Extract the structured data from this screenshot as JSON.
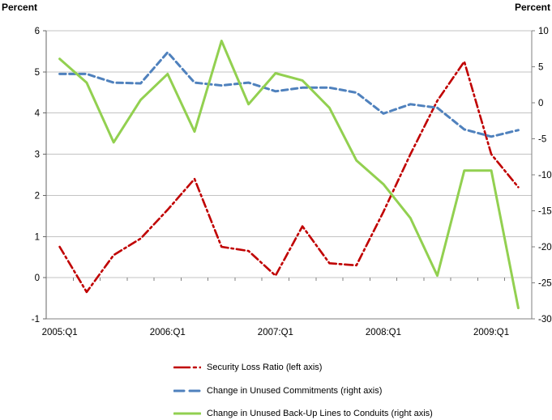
{
  "chart_data": {
    "type": "line",
    "title": "",
    "categories": [
      "2005:Q1",
      "2005:Q2",
      "2005:Q3",
      "2005:Q4",
      "2006:Q1",
      "2006:Q2",
      "2006:Q3",
      "2006:Q4",
      "2007:Q1",
      "2007:Q2",
      "2007:Q3",
      "2007:Q4",
      "2008:Q1",
      "2008:Q2",
      "2008:Q3",
      "2008:Q4",
      "2009:Q1",
      "2009:Q2"
    ],
    "x_axis": {
      "tick_labels": [
        {
          "index": 0,
          "label": "2005:Q1"
        },
        {
          "index": 4,
          "label": "2006:Q1"
        },
        {
          "index": 8,
          "label": "2007:Q1"
        },
        {
          "index": 12,
          "label": "2008:Q1"
        },
        {
          "index": 16,
          "label": "2009:Q1"
        }
      ]
    },
    "left_axis": {
      "label": "Percent",
      "min": -1,
      "max": 6,
      "step": 1,
      "ticks": [
        6,
        5,
        4,
        3,
        2,
        1,
        0,
        -1
      ]
    },
    "right_axis": {
      "label": "Percent",
      "min": -30,
      "max": 10,
      "step": 5,
      "ticks": [
        10,
        5,
        0,
        -5,
        -10,
        -15,
        -20,
        -25,
        -30
      ]
    },
    "grid": true,
    "legend_position": "bottom",
    "series": [
      {
        "name": "Security Loss Ratio (left axis)",
        "axis": "left",
        "color": "#C00000",
        "style": "dash-dot",
        "values": [
          0.75,
          -0.35,
          0.55,
          0.95,
          1.65,
          2.4,
          0.75,
          0.65,
          0.05,
          1.25,
          0.35,
          0.3,
          1.6,
          3.0,
          4.3,
          5.25,
          3.0,
          2.2
        ]
      },
      {
        "name": "Change in Unused Commitments (right axis)",
        "axis": "right",
        "color": "#4F81BD",
        "style": "dashed",
        "values": [
          4.0,
          4.0,
          2.8,
          2.7,
          7.0,
          2.8,
          2.4,
          2.8,
          1.6,
          2.1,
          2.1,
          1.4,
          -1.5,
          -0.2,
          -0.7,
          -3.7,
          -4.7,
          -3.8
        ]
      },
      {
        "name": "Change in Unused Back-Up Lines to Conduits (right axis)",
        "axis": "right",
        "color": "#92D050",
        "style": "solid",
        "values": [
          6.1,
          2.8,
          -5.5,
          0.4,
          4.0,
          -4.0,
          8.6,
          -0.2,
          4.1,
          3.1,
          -0.7,
          -8.0,
          -11.3,
          -16.0,
          -24.0,
          -9.4,
          -9.4,
          -28.5
        ]
      }
    ],
    "colors": {
      "gridline": "#C3C3C3",
      "axis_line": "#808080",
      "text": "#000000"
    }
  }
}
